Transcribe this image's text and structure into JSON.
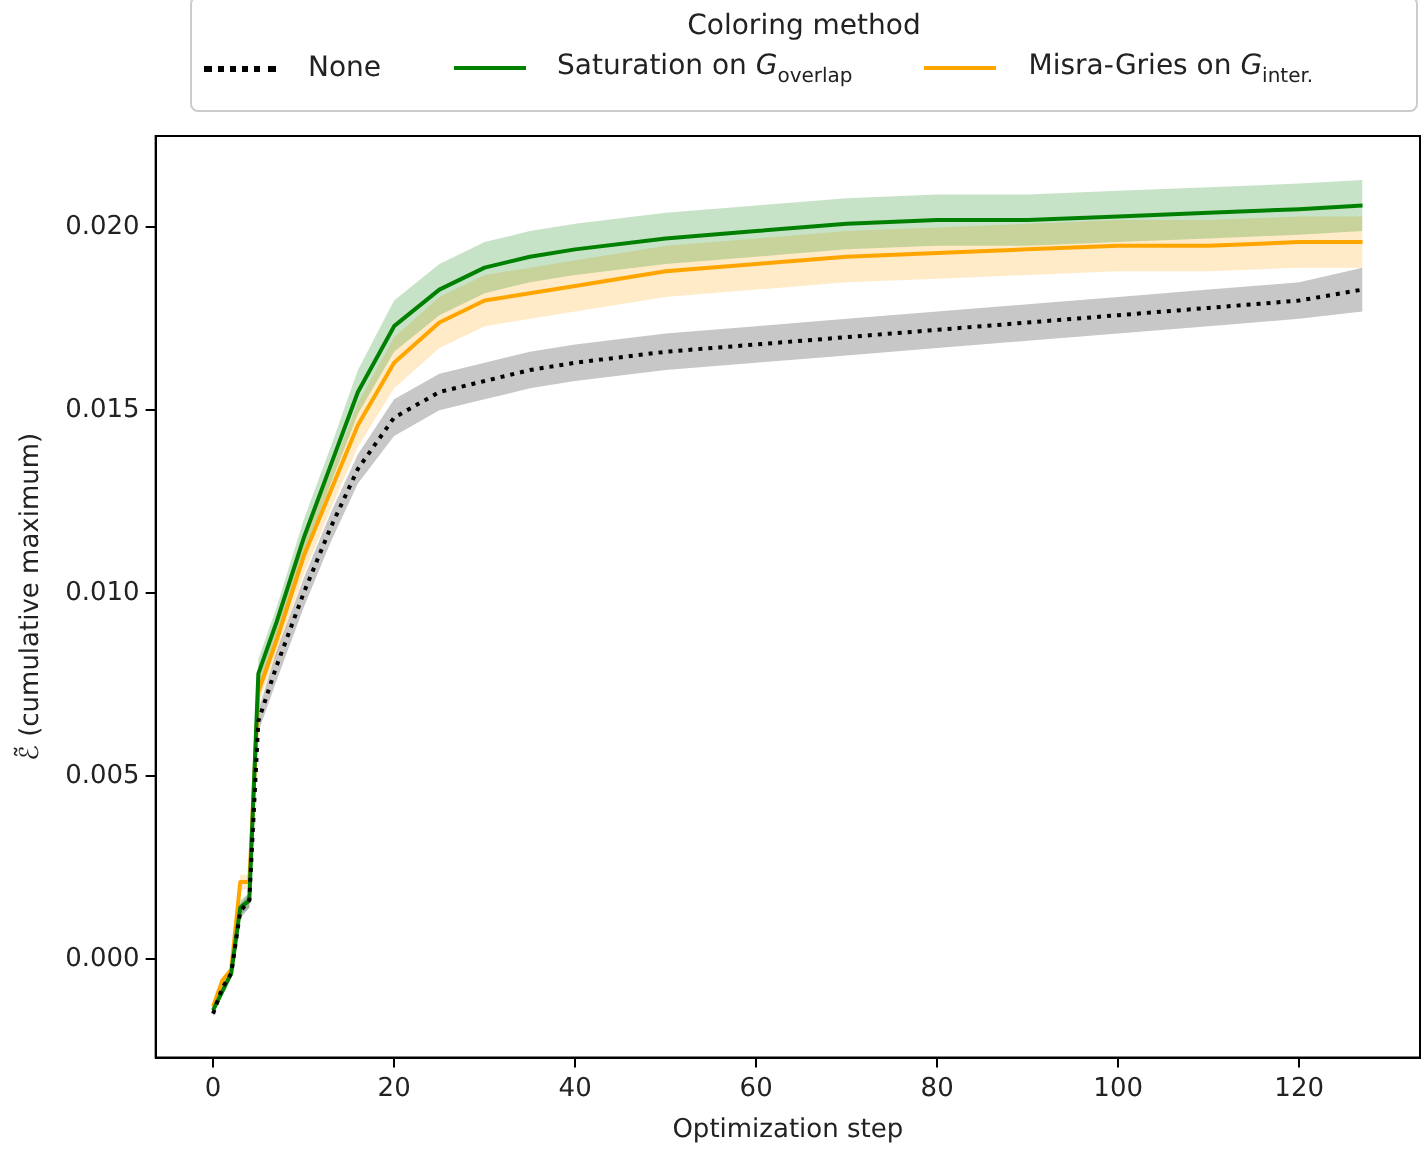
{
  "chart_data": {
    "type": "line",
    "xlabel": "Optimization step",
    "ylabel": "ℰ̃ (cumulative maximum)",
    "legend_title": "Coloring method",
    "legend": "top",
    "grid": false,
    "marker": "none",
    "xlim": [
      -6.35,
      133.35
    ],
    "xticks": [
      0,
      20,
      40,
      60,
      80,
      100,
      120
    ],
    "ylim": [
      -0.0027,
      0.0225
    ],
    "yticks": [
      {
        "value": 0,
        "label": "0.000"
      },
      {
        "value": 0.005,
        "label": "0.005"
      },
      {
        "value": 0.01,
        "label": "0.010"
      },
      {
        "value": 0.015,
        "label": "0.015"
      },
      {
        "value": 0.02,
        "label": "0.020"
      }
    ],
    "x": [
      0,
      1,
      2,
      3,
      4,
      5,
      7,
      10,
      13,
      16,
      20,
      25,
      30,
      35,
      40,
      50,
      60,
      70,
      80,
      90,
      100,
      110,
      120,
      127
    ],
    "series": [
      {
        "name": "None",
        "color": "#000000",
        "line_style": "dotted",
        "values": [
          -0.0015,
          -0.0008,
          -0.0004,
          0.0013,
          0.0016,
          0.0065,
          0.008,
          0.01,
          0.0118,
          0.0134,
          0.0148,
          0.0155,
          0.0158,
          0.0161,
          0.0163,
          0.0166,
          0.0168,
          0.017,
          0.0172,
          0.0174,
          0.0176,
          0.0178,
          0.018,
          0.0183
        ],
        "lower": [
          -0.0016,
          -0.0009,
          -0.0005,
          0.0011,
          0.0014,
          0.0062,
          0.0076,
          0.0096,
          0.0114,
          0.013,
          0.0143,
          0.015,
          0.0153,
          0.0156,
          0.0158,
          0.0161,
          0.0163,
          0.0165,
          0.0167,
          0.0169,
          0.0171,
          0.0173,
          0.0175,
          0.0177
        ],
        "upper": [
          -0.0014,
          -0.0007,
          -0.0003,
          0.0015,
          0.0018,
          0.0068,
          0.0084,
          0.0104,
          0.0122,
          0.0138,
          0.0153,
          0.016,
          0.0163,
          0.0166,
          0.0168,
          0.0171,
          0.0173,
          0.0175,
          0.0177,
          0.0179,
          0.0181,
          0.0183,
          0.0185,
          0.0189
        ]
      },
      {
        "name": "Saturation on G$_{overlap}$",
        "color": "#008000",
        "line_style": "solid",
        "values": [
          -0.0014,
          -0.0009,
          -0.0004,
          0.0014,
          0.0016,
          0.0078,
          0.0092,
          0.0115,
          0.0135,
          0.0155,
          0.0173,
          0.0183,
          0.0189,
          0.0192,
          0.0194,
          0.0197,
          0.0199,
          0.0201,
          0.0202,
          0.0202,
          0.0203,
          0.0204,
          0.0205,
          0.0206
        ],
        "lower": [
          -0.0015,
          -0.001,
          -0.0005,
          0.0012,
          0.0014,
          0.0074,
          0.0088,
          0.011,
          0.013,
          0.0149,
          0.0166,
          0.0176,
          0.0182,
          0.0185,
          0.0187,
          0.019,
          0.0192,
          0.0194,
          0.0195,
          0.0195,
          0.0196,
          0.0197,
          0.0198,
          0.0199
        ],
        "upper": [
          -0.0013,
          -0.0008,
          -0.0003,
          0.0016,
          0.0018,
          0.0082,
          0.0096,
          0.012,
          0.014,
          0.0161,
          0.018,
          0.019,
          0.0196,
          0.0199,
          0.0201,
          0.0204,
          0.0206,
          0.0208,
          0.0209,
          0.0209,
          0.021,
          0.0211,
          0.0212,
          0.0213
        ]
      },
      {
        "name": "Misra-Gries on G$_{inter.}$",
        "color": "#ffa500",
        "line_style": "solid",
        "values": [
          -0.0013,
          -0.0006,
          -0.0003,
          0.0021,
          0.0021,
          0.0073,
          0.0087,
          0.011,
          0.0128,
          0.0146,
          0.0163,
          0.0174,
          0.018,
          0.0182,
          0.0184,
          0.0188,
          0.019,
          0.0192,
          0.0193,
          0.0194,
          0.0195,
          0.0195,
          0.0196,
          0.0196
        ],
        "lower": [
          -0.0014,
          -0.0007,
          -0.0004,
          0.0019,
          0.0019,
          0.007,
          0.0083,
          0.0105,
          0.0123,
          0.014,
          0.0156,
          0.0167,
          0.0173,
          0.0175,
          0.0177,
          0.0181,
          0.0183,
          0.0185,
          0.0186,
          0.0187,
          0.0188,
          0.0188,
          0.0189,
          0.0189
        ],
        "upper": [
          -0.0012,
          -0.0005,
          -0.0002,
          0.0023,
          0.0023,
          0.0076,
          0.0091,
          0.0115,
          0.0133,
          0.0152,
          0.017,
          0.0181,
          0.0187,
          0.0189,
          0.0191,
          0.0195,
          0.0197,
          0.0199,
          0.02,
          0.0201,
          0.0202,
          0.0202,
          0.0203,
          0.0203
        ]
      }
    ]
  }
}
